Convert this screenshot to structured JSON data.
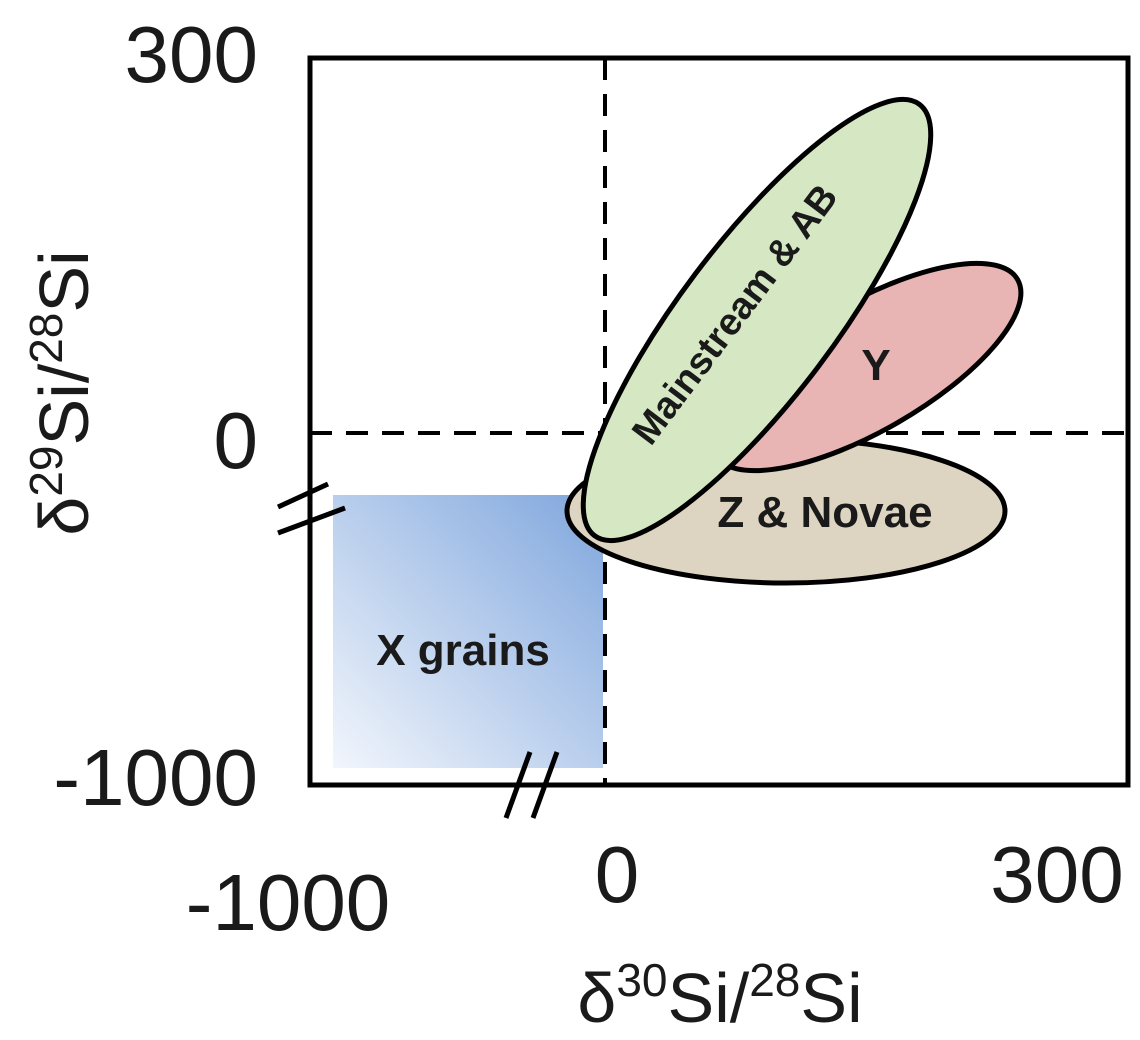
{
  "chart_data": {
    "type": "region-diagram",
    "axes": {
      "x": {
        "label_parts": [
          "δ",
          "30",
          "Si/",
          "28",
          "Si"
        ],
        "ticks": [
          "-1000",
          "0",
          "300"
        ],
        "lim": [
          -1000,
          300
        ],
        "axis_break": true
      },
      "y": {
        "label_parts": [
          "δ",
          "29",
          "Si/",
          "28",
          "Si"
        ],
        "ticks": [
          "300",
          "0",
          "-1000"
        ],
        "lim": [
          -1000,
          300
        ],
        "axis_break": true
      }
    },
    "reference_lines": [
      {
        "orientation": "vertical",
        "value": 0,
        "style": "dashed"
      },
      {
        "orientation": "horizontal",
        "value": 0,
        "style": "dashed"
      }
    ],
    "regions": [
      {
        "label": "X grains",
        "shape": "rectangle",
        "color": "#8fb1e0",
        "x_range": [
          -1000,
          -20
        ],
        "y_range": [
          -1000,
          -60
        ]
      },
      {
        "label": "Z & Novae",
        "shape": "ellipse",
        "color": "#ddd5c1",
        "x_center": 100,
        "y_center": -70
      },
      {
        "label": "Y",
        "shape": "ellipse",
        "color": "#e8b4b4",
        "x_center": 160,
        "y_center": 55
      },
      {
        "label": "Mainstream & AB",
        "shape": "ellipse",
        "color": "#d6e8c3",
        "x_center": 95,
        "y_center": 120
      }
    ],
    "grid": false,
    "legend": "none"
  }
}
